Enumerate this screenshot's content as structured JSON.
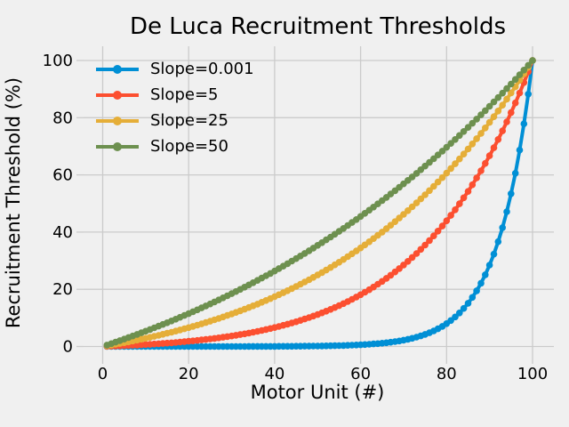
{
  "chart_data": {
    "type": "line",
    "title": "De Luca Recruitment Thresholds",
    "xlabel": "Motor Unit (#)",
    "ylabel": "Recruitment Threshold (%)",
    "xlim": [
      0,
      100
    ],
    "ylim": [
      0,
      100
    ],
    "xticks": [
      0,
      20,
      40,
      60,
      80,
      100
    ],
    "yticks": [
      0,
      20,
      40,
      60,
      80,
      100
    ],
    "grid": true,
    "legend_position": "upper left",
    "background_color": "#f0f0f0",
    "grid_color": "#cbcbcb",
    "text_color": "#000000",
    "marker": "o",
    "x": [
      1,
      2,
      3,
      4,
      5,
      6,
      7,
      8,
      9,
      10,
      11,
      12,
      13,
      14,
      15,
      16,
      17,
      18,
      19,
      20,
      21,
      22,
      23,
      24,
      25,
      26,
      27,
      28,
      29,
      30,
      31,
      32,
      33,
      34,
      35,
      36,
      37,
      38,
      39,
      40,
      41,
      42,
      43,
      44,
      45,
      46,
      47,
      48,
      49,
      50,
      51,
      52,
      53,
      54,
      55,
      56,
      57,
      58,
      59,
      60,
      61,
      62,
      63,
      64,
      65,
      66,
      67,
      68,
      69,
      70,
      71,
      72,
      73,
      74,
      75,
      76,
      77,
      78,
      79,
      80,
      81,
      82,
      83,
      84,
      85,
      86,
      87,
      88,
      89,
      90,
      91,
      92,
      93,
      94,
      95,
      96,
      97,
      98,
      99,
      100
    ],
    "series": [
      {
        "name": "Slope=0.001",
        "color": "#008fd5",
        "values": [
          0,
          0,
          0,
          0,
          0,
          0,
          0,
          0,
          0,
          0,
          0,
          0,
          0,
          0,
          0,
          0,
          0,
          0,
          0,
          0,
          0,
          0,
          0,
          0,
          0,
          0.01,
          0.01,
          0.01,
          0.01,
          0.01,
          0.01,
          0.01,
          0.01,
          0.02,
          0.02,
          0.02,
          0.02,
          0.03,
          0.03,
          0.04,
          0.05,
          0.05,
          0.06,
          0.07,
          0.08,
          0.09,
          0.11,
          0.12,
          0.14,
          0.16,
          0.18,
          0.21,
          0.24,
          0.27,
          0.31,
          0.35,
          0.4,
          0.46,
          0.53,
          0.6,
          0.68,
          0.78,
          0.89,
          1.01,
          1.16,
          1.32,
          1.5,
          1.71,
          1.94,
          2.21,
          2.52,
          2.87,
          3.26,
          3.71,
          4.22,
          4.8,
          5.45,
          6.2,
          7.04,
          8,
          9.09,
          10.32,
          11.72,
          13.31,
          15.12,
          17.16,
          19.48,
          22.1,
          25.08,
          28.46,
          32.29,
          36.63,
          41.54,
          47.11,
          53.42,
          60.57,
          68.67,
          77.84,
          88.23,
          100
        ]
      },
      {
        "name": "Slope=5",
        "color": "#fc4f30",
        "values": [
          0.05,
          0.11,
          0.16,
          0.23,
          0.29,
          0.36,
          0.43,
          0.51,
          0.59,
          0.67,
          0.76,
          0.86,
          0.96,
          1.06,
          1.18,
          1.29,
          1.41,
          1.54,
          1.68,
          1.82,
          1.97,
          2.13,
          2.29,
          2.46,
          2.64,
          2.83,
          3.03,
          3.24,
          3.46,
          3.68,
          3.92,
          4.17,
          4.43,
          4.71,
          4.99,
          5.29,
          5.6,
          5.93,
          6.27,
          6.63,
          7,
          7.39,
          7.8,
          8.22,
          8.66,
          9.12,
          9.61,
          10.11,
          10.63,
          11.18,
          11.75,
          12.35,
          12.97,
          13.61,
          14.29,
          14.99,
          15.72,
          16.48,
          17.28,
          18.1,
          18.96,
          19.86,
          20.79,
          21.77,
          22.78,
          23.83,
          24.93,
          26.07,
          27.26,
          28.5,
          29.78,
          31.12,
          32.51,
          33.96,
          35.47,
          37.03,
          38.66,
          40.35,
          42.11,
          43.94,
          45.84,
          47.82,
          49.88,
          52.01,
          54.23,
          56.54,
          58.94,
          61.43,
          64.01,
          66.7,
          69.49,
          72.39,
          75.41,
          78.54,
          81.78,
          85.16,
          88.66,
          92.3,
          96.08,
          100
        ]
      },
      {
        "name": "Slope=25",
        "color": "#e5ae38",
        "values": [
          0.25,
          0.51,
          0.78,
          1.06,
          1.34,
          1.63,
          1.93,
          2.23,
          2.55,
          2.87,
          3.2,
          3.54,
          3.89,
          4.25,
          4.62,
          4.99,
          5.38,
          5.78,
          6.18,
          6.6,
          7.02,
          7.46,
          7.91,
          8.37,
          8.84,
          9.32,
          9.81,
          10.32,
          10.84,
          11.37,
          11.91,
          12.47,
          13.04,
          13.62,
          14.21,
          14.82,
          15.45,
          16.09,
          16.74,
          17.41,
          18.1,
          18.8,
          19.51,
          20.24,
          20.99,
          21.76,
          22.54,
          23.34,
          24.16,
          25,
          25.86,
          26.73,
          27.63,
          28.54,
          29.47,
          30.43,
          31.4,
          32.4,
          33.42,
          34.46,
          35.52,
          36.61,
          37.72,
          38.85,
          40.01,
          41.19,
          42.4,
          43.64,
          44.9,
          46.18,
          47.5,
          48.84,
          50.21,
          51.61,
          53.03,
          54.49,
          55.98,
          57.5,
          59.05,
          60.63,
          62.24,
          63.89,
          65.57,
          67.29,
          69.04,
          70.83,
          72.65,
          74.51,
          76.41,
          78.35,
          80.33,
          82.34,
          84.4,
          86.5,
          88.64,
          90.82,
          93.05,
          95.32,
          97.64,
          100
        ]
      },
      {
        "name": "Slope=50",
        "color": "#6d904f",
        "values": [
          0.5,
          1.01,
          1.53,
          2.06,
          2.59,
          3.13,
          3.67,
          4.23,
          4.79,
          5.36,
          5.94,
          6.52,
          7.11,
          7.71,
          8.32,
          8.94,
          9.56,
          10.2,
          10.84,
          11.49,
          12.15,
          12.81,
          13.49,
          14.17,
          14.87,
          15.57,
          16.28,
          17,
          17.73,
          18.47,
          19.22,
          19.97,
          20.74,
          21.52,
          22.3,
          23.1,
          23.91,
          24.73,
          25.55,
          26.39,
          27.24,
          28.1,
          28.97,
          29.85,
          30.74,
          31.64,
          32.55,
          33.47,
          34.41,
          35.36,
          36.31,
          37.28,
          38.26,
          39.26,
          40.26,
          41.28,
          42.31,
          43.35,
          44.4,
          45.47,
          46.55,
          47.64,
          48.75,
          49.87,
          51,
          52.14,
          53.3,
          54.47,
          55.66,
          56.86,
          58.07,
          59.3,
          60.54,
          61.8,
          63.07,
          64.35,
          65.65,
          66.97,
          68.3,
          69.64,
          71.01,
          72.38,
          73.77,
          75.18,
          76.61,
          78.05,
          79.5,
          80.98,
          82.47,
          83.97,
          85.5,
          87.04,
          88.6,
          90.17,
          91.76,
          93.38,
          95,
          96.65,
          98.32,
          100
        ]
      }
    ]
  }
}
